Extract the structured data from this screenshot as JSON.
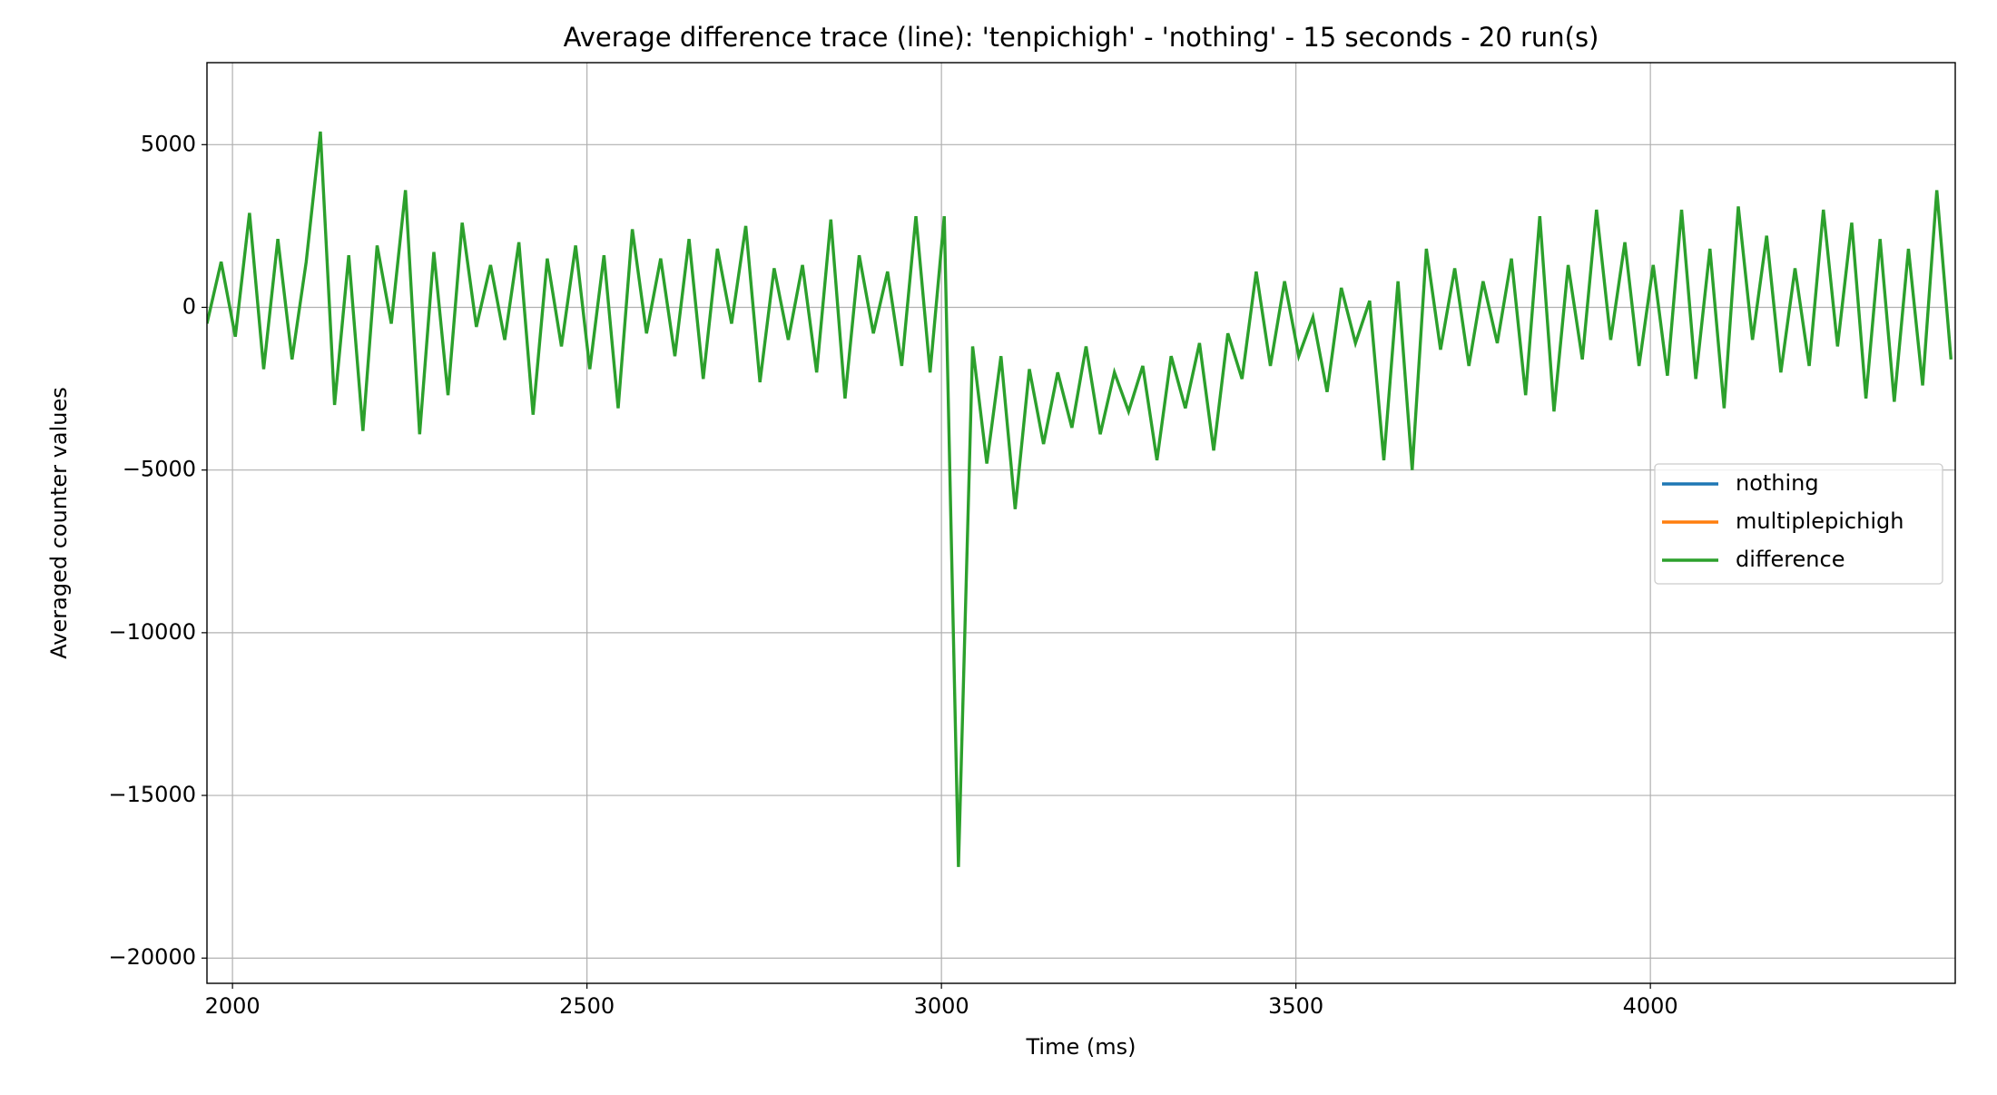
{
  "chart_data": {
    "type": "line",
    "title": "Average difference trace (line): 'tenpichigh' - 'nothing' - 15 seconds - 20 run(s)",
    "x_label": "Time (ms)",
    "y_label": "Averaged counter values",
    "x": [
      1964,
      1984,
      2004,
      2024,
      2044,
      2064,
      2084,
      2104,
      2124,
      2144,
      2164,
      2184,
      2204,
      2224,
      2244,
      2264,
      2284,
      2304,
      2324,
      2344,
      2364,
      2384,
      2404,
      2424,
      2444,
      2464,
      2484,
      2504,
      2524,
      2544,
      2564,
      2584,
      2604,
      2624,
      2644,
      2664,
      2684,
      2704,
      2724,
      2744,
      2764,
      2784,
      2804,
      2824,
      2844,
      2864,
      2884,
      2904,
      2924,
      2944,
      2964,
      2984,
      3004,
      3024,
      3044,
      3064,
      3084,
      3104,
      3124,
      3144,
      3164,
      3184,
      3204,
      3224,
      3244,
      3264,
      3284,
      3304,
      3324,
      3344,
      3364,
      3384,
      3404,
      3424,
      3444,
      3464,
      3484,
      3504,
      3524,
      3544,
      3564,
      3584,
      3604,
      3624,
      3644,
      3664,
      3684,
      3704,
      3724,
      3744,
      3764,
      3784,
      3804,
      3824,
      3844,
      3864,
      3884,
      3904,
      3924,
      3944,
      3964,
      3984,
      4004,
      4024,
      4044,
      4064,
      4084,
      4104,
      4124,
      4144,
      4164,
      4184,
      4204,
      4224,
      4244,
      4264,
      4284,
      4304,
      4324,
      4344,
      4364,
      4384,
      4404,
      4424
    ],
    "series": [
      {
        "name": "nothing",
        "color": "#1f77b4",
        "values": [
          null,
          null,
          null,
          null,
          null,
          null,
          null,
          null,
          null,
          null,
          null,
          null,
          null,
          null,
          null,
          null,
          null,
          null,
          null,
          null,
          null,
          null,
          null,
          null,
          null,
          null,
          null,
          null,
          null,
          null,
          null,
          null,
          null,
          null,
          null,
          null,
          null,
          null,
          null,
          null,
          null,
          null,
          null,
          null,
          null,
          null,
          null,
          null,
          null,
          null,
          null,
          null,
          null,
          null,
          null,
          null,
          null,
          null,
          null,
          null,
          null,
          null,
          null,
          null,
          null,
          null,
          null,
          null,
          null,
          null,
          null,
          null,
          null,
          null,
          null,
          null,
          null,
          null,
          null,
          null,
          null,
          null,
          null,
          null,
          null,
          null,
          null,
          null,
          null,
          null,
          null,
          null,
          null,
          null,
          null,
          null,
          null,
          null,
          null,
          null,
          null,
          null,
          null,
          null,
          null,
          null,
          null,
          null,
          null,
          null,
          null,
          null,
          null,
          null,
          null,
          null,
          null,
          null,
          null,
          null,
          null,
          null,
          null,
          null
        ]
      },
      {
        "name": "multiplepichigh",
        "color": "#ff7f0e",
        "values": [
          null,
          null,
          null,
          null,
          null,
          null,
          null,
          null,
          null,
          null,
          null,
          null,
          null,
          null,
          null,
          null,
          null,
          null,
          null,
          null,
          null,
          null,
          null,
          null,
          null,
          null,
          null,
          null,
          null,
          null,
          null,
          null,
          null,
          null,
          null,
          null,
          null,
          null,
          null,
          null,
          null,
          null,
          null,
          null,
          null,
          null,
          null,
          null,
          null,
          null,
          null,
          null,
          null,
          null,
          null,
          null,
          null,
          null,
          null,
          null,
          null,
          null,
          null,
          null,
          null,
          null,
          null,
          null,
          null,
          null,
          null,
          null,
          null,
          null,
          null,
          null,
          null,
          null,
          null,
          null,
          null,
          null,
          null,
          null,
          null,
          null,
          null,
          null,
          null,
          null,
          null,
          null,
          null,
          null,
          null,
          null,
          null,
          null,
          null,
          null,
          null,
          null,
          null,
          null,
          null,
          null,
          null,
          null,
          null,
          null,
          null,
          null,
          null,
          null,
          null,
          null,
          null,
          null,
          null,
          null,
          null,
          null,
          null,
          null
        ]
      },
      {
        "name": "difference",
        "color": "#2ca02c",
        "values": [
          -500,
          1400,
          -900,
          2900,
          -1900,
          2100,
          -1600,
          1400,
          5400,
          -3000,
          1600,
          -3800,
          1900,
          -500,
          3600,
          -3900,
          1700,
          -2700,
          2600,
          -600,
          1300,
          -1000,
          2000,
          -3300,
          1500,
          -1200,
          1900,
          -1900,
          1600,
          -3100,
          2400,
          -800,
          1500,
          -1500,
          2100,
          -2200,
          1800,
          -500,
          2500,
          -2300,
          1200,
          -1000,
          1300,
          -2000,
          2700,
          -2800,
          1600,
          -800,
          1100,
          -1800,
          2800,
          -2000,
          2800,
          -17200,
          -1200,
          -4800,
          -1500,
          -6200,
          -1900,
          -4200,
          -2000,
          -3700,
          -1200,
          -3900,
          -2000,
          -3200,
          -1800,
          -4700,
          -1500,
          -3100,
          -1100,
          -4400,
          -800,
          -2200,
          1100,
          -1800,
          800,
          -1500,
          -300,
          -2600,
          600,
          -1100,
          200,
          -4700,
          800,
          -5000,
          1800,
          -1300,
          1200,
          -1800,
          800,
          -1100,
          1500,
          -2700,
          2800,
          -3200,
          1300,
          -1600,
          3000,
          -1000,
          2000,
          -1800,
          1300,
          -2100,
          3000,
          -2200,
          1800,
          -3100,
          3100,
          -1000,
          2200,
          -2000,
          1200,
          -1800,
          3000,
          -1200,
          2600,
          -2800,
          2100,
          -2900,
          1800,
          -2400,
          3600,
          -1600
        ]
      }
    ],
    "xlim": [
      1964,
      4430
    ],
    "ylim": [
      -20775,
      7520
    ],
    "xticks": [
      2000,
      2500,
      3000,
      3500,
      4000
    ],
    "yticks": [
      {
        "value": -20000,
        "label": "−20000"
      },
      {
        "value": -15000,
        "label": "−15000"
      },
      {
        "value": -10000,
        "label": "−10000"
      },
      {
        "value": -5000,
        "label": "−5000"
      },
      0,
      5000
    ],
    "grid": true,
    "legend": "center right"
  }
}
